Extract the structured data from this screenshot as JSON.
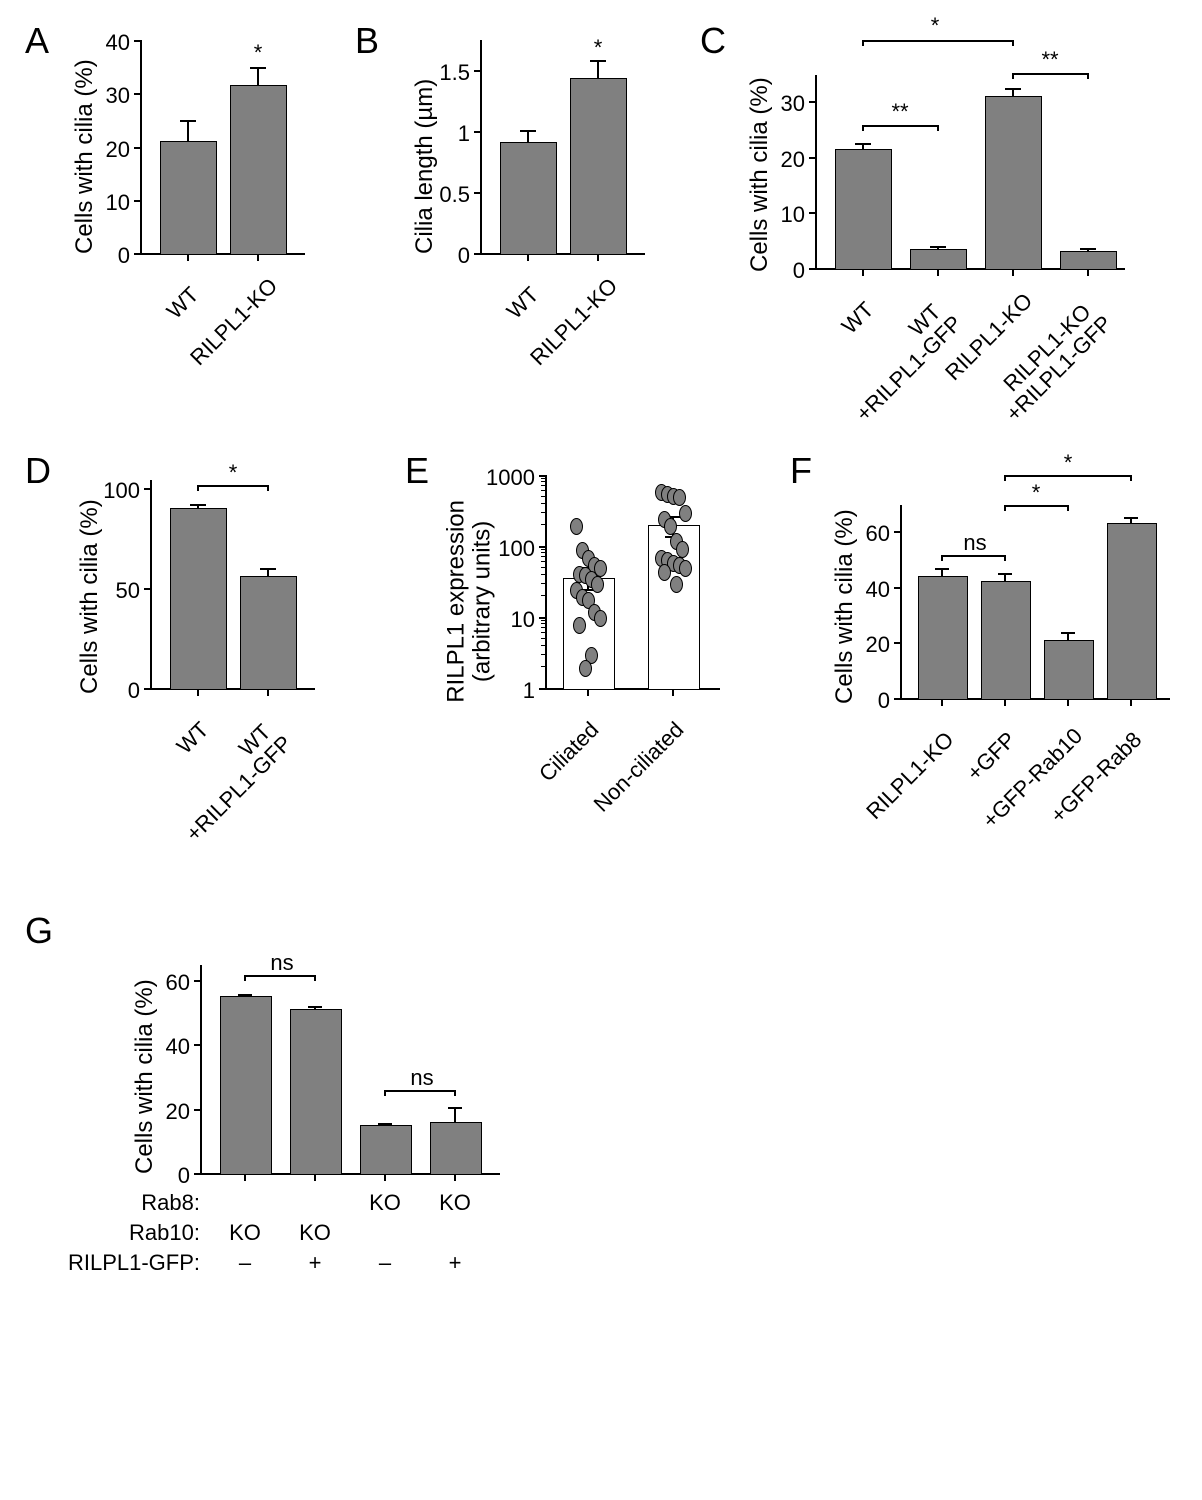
{
  "panels": {
    "A": {
      "label": "A",
      "ylabel": "Cells with cilia (%)",
      "ylim": [
        0,
        40
      ],
      "yticks": [
        0,
        10,
        20,
        30,
        40
      ],
      "categories": [
        "WT",
        "RILPL1-KO"
      ],
      "values": [
        21,
        31.5
      ],
      "errors": [
        4,
        3.5
      ],
      "bar_color": "#808080",
      "sig": [
        {
          "text": "*",
          "over": 1
        }
      ]
    },
    "B": {
      "label": "B",
      "ylabel": "Cilia length (µm)",
      "ylim": [
        0,
        1.75
      ],
      "yticks": [
        0,
        0.5,
        1.0,
        1.5
      ],
      "categories": [
        "WT",
        "RILPL1-KO"
      ],
      "values": [
        0.91,
        1.43
      ],
      "errors": [
        0.1,
        0.15
      ],
      "bar_color": "#808080",
      "sig": [
        {
          "text": "*",
          "over": 1
        }
      ]
    },
    "C": {
      "label": "C",
      "ylabel": "Cells with cilia (%)",
      "ylim": [
        0,
        35
      ],
      "yticks": [
        0,
        10,
        20,
        30
      ],
      "categories": [
        "WT",
        "WT\n+RILPL1-GFP",
        "RILPL1-KO",
        "RILPL1-KO\n+RILPL1-GFP"
      ],
      "values": [
        21.5,
        3.5,
        31,
        3
      ],
      "errors": [
        1,
        0.5,
        1.5,
        0.5
      ],
      "bar_color": "#808080",
      "sig_brackets": [
        {
          "from": 0,
          "to": 1,
          "text": "**",
          "level": 0
        },
        {
          "from": 2,
          "to": 3,
          "text": "**",
          "level": 0
        },
        {
          "from": 0,
          "to": 2,
          "text": "*",
          "level": 1
        }
      ]
    },
    "D": {
      "label": "D",
      "ylabel": "Cells with cilia (%)",
      "ylim": [
        0,
        105
      ],
      "yticks": [
        0,
        50,
        100
      ],
      "categories": [
        "WT",
        "WT\n+RILPL1-GFP"
      ],
      "values": [
        90,
        56
      ],
      "errors": [
        2,
        4
      ],
      "bar_color": "#808080",
      "sig_brackets": [
        {
          "from": 0,
          "to": 1,
          "text": "*",
          "level": 0
        }
      ]
    },
    "E": {
      "label": "E",
      "ylabel": "RILPL1 expression\n(arbitrary units)",
      "ylim": [
        1,
        1000
      ],
      "scale": "log",
      "yticks": [
        1,
        10,
        100,
        1000
      ],
      "categories": [
        "Ciliated",
        "Non-ciliated"
      ],
      "means": [
        35,
        200
      ],
      "errors": [
        15,
        60
      ],
      "points_ciliated": [
        200,
        90,
        70,
        55,
        50,
        42,
        40,
        35,
        30,
        25,
        20,
        18,
        12,
        10,
        8,
        3,
        2
      ],
      "points_nonciliated": [
        600,
        550,
        520,
        500,
        300,
        250,
        200,
        120,
        95,
        70,
        65,
        60,
        55,
        50,
        45,
        30
      ]
    },
    "F": {
      "label": "F",
      "ylabel": "Cells with cilia (%)",
      "ylim": [
        0,
        70
      ],
      "yticks": [
        0,
        20,
        40,
        60
      ],
      "categories": [
        "RILPL1-KO",
        "+GFP",
        "+GFP-Rab10",
        "+GFP-Rab8"
      ],
      "values": [
        44,
        42,
        21,
        63
      ],
      "errors": [
        3,
        3,
        3,
        2
      ],
      "bar_color": "#808080",
      "sig_brackets": [
        {
          "from": 0,
          "to": 1,
          "text": "ns",
          "level": 0
        },
        {
          "from": 1,
          "to": 2,
          "text": "*",
          "level": 1
        },
        {
          "from": 1,
          "to": 3,
          "text": "*",
          "level": 2
        }
      ]
    },
    "G": {
      "label": "G",
      "ylabel": "Cells with cilia (%)",
      "ylim": [
        0,
        65
      ],
      "yticks": [
        0,
        20,
        40,
        60
      ],
      "values": [
        55,
        51,
        15,
        16
      ],
      "errors": [
        0.5,
        1,
        0.5,
        4.5
      ],
      "bar_color": "#808080",
      "sig_brackets": [
        {
          "from": 0,
          "to": 1,
          "text": "ns",
          "level": 0
        },
        {
          "from": 2,
          "to": 3,
          "text": "ns",
          "level": 0
        }
      ],
      "row_labels": [
        "Rab8:",
        "Rab10:",
        "RILPL1-GFP:"
      ],
      "rows": [
        [
          "",
          "",
          "KO",
          "KO"
        ],
        [
          "KO",
          "KO",
          "",
          ""
        ],
        [
          "–",
          "+",
          "–",
          "+"
        ]
      ]
    }
  },
  "layout": {
    "bg_color": "#ffffff",
    "bar_fill": "#808080",
    "axis_color": "#000000",
    "font_size": 24
  }
}
